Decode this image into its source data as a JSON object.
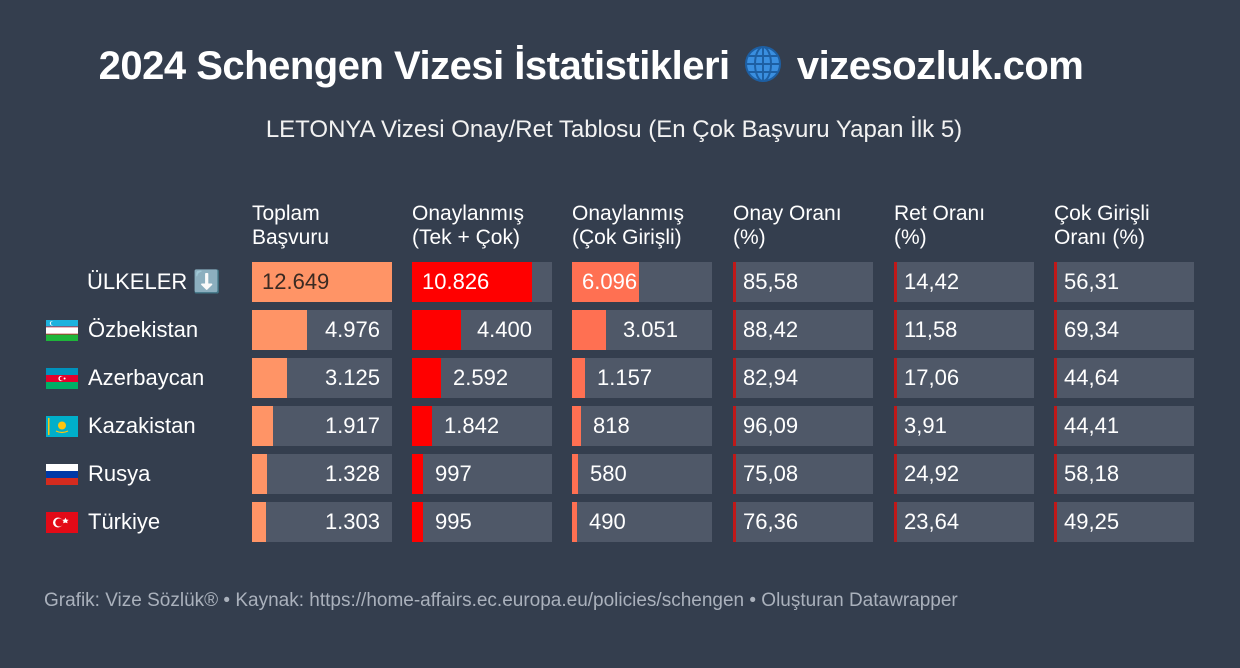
{
  "header": {
    "title": "2024 Schengen Vizesi İstatistikleri",
    "title_site": "vizesozluk.com",
    "subtitle": "LETONYA Vizesi Onay/Ret Tablosu (En Çok Başvuru Yapan İlk 5)"
  },
  "columns": [
    {
      "line1": "Toplam",
      "line2": "Başvuru"
    },
    {
      "line1": "Onaylanmış",
      "line2": "(Tek + Çok)"
    },
    {
      "line1": "Onaylanmış",
      "line2": "(Çok Girişli)"
    },
    {
      "line1": "Onay Oranı",
      "line2": "(%)"
    },
    {
      "line1": "Ret Oranı",
      "line2": "(%)"
    },
    {
      "line1": "Çok Girişli",
      "line2": "Oranı (%)"
    }
  ],
  "rows": [
    {
      "label": "ÜLKELER ⬇️",
      "flag": "none",
      "values": [
        "12.649",
        "10.826",
        "6.096",
        "85,58",
        "14,42",
        "56,31"
      ]
    },
    {
      "label": "Özbekistan",
      "flag": "uz",
      "values": [
        "4.976",
        "4.400",
        "3.051",
        "88,42",
        "11,58",
        "69,34"
      ]
    },
    {
      "label": "Azerbaycan",
      "flag": "az",
      "values": [
        "3.125",
        "2.592",
        "1.157",
        "82,94",
        "17,06",
        "44,64"
      ]
    },
    {
      "label": "Kazakistan",
      "flag": "kz",
      "values": [
        "1.917",
        "1.842",
        "818",
        "96,09",
        "3,91",
        "44,41"
      ]
    },
    {
      "label": "Rusya",
      "flag": "ru",
      "values": [
        "1.328",
        "997",
        "580",
        "75,08",
        "24,92",
        "58,18"
      ]
    },
    {
      "label": "Türkiye",
      "flag": "tr",
      "values": [
        "1.303",
        "995",
        "490",
        "76,36",
        "23,64",
        "49,25"
      ]
    }
  ],
  "footer": "Grafik: Vize Sözlük® • Kaynak: https://home-affairs.ec.europa.eu/policies/schengen • Oluşturan Datawrapper",
  "colors": {
    "background": "#343e4e",
    "cell": "#4f5868",
    "bar_total": "#ff9466",
    "bar_approved": "#ff0000",
    "bar_multi": "#ff7052",
    "rate_accent": "#c01818"
  },
  "chart_data": {
    "type": "table",
    "categories": [
      "ÜLKELER",
      "Özbekistan",
      "Azerbaycan",
      "Kazakistan",
      "Rusya",
      "Türkiye"
    ],
    "series": [
      {
        "name": "Toplam Başvuru",
        "values": [
          12649,
          4976,
          3125,
          1917,
          1328,
          1303
        ],
        "max": 12649
      },
      {
        "name": "Onaylanmış (Tek + Çok)",
        "values": [
          10826,
          4400,
          2592,
          1842,
          997,
          995
        ],
        "max": 12649
      },
      {
        "name": "Onaylanmış (Çok Girişli)",
        "values": [
          6096,
          3051,
          1157,
          818,
          580,
          490
        ],
        "max": 12649
      },
      {
        "name": "Onay Oranı (%)",
        "values": [
          85.58,
          88.42,
          82.94,
          96.09,
          75.08,
          76.36
        ]
      },
      {
        "name": "Ret Oranı (%)",
        "values": [
          14.42,
          11.58,
          17.06,
          3.91,
          24.92,
          23.64
        ]
      },
      {
        "name": "Çok Girişli Oranı (%)",
        "values": [
          56.31,
          69.34,
          44.64,
          44.41,
          58.18,
          49.25
        ]
      }
    ]
  }
}
